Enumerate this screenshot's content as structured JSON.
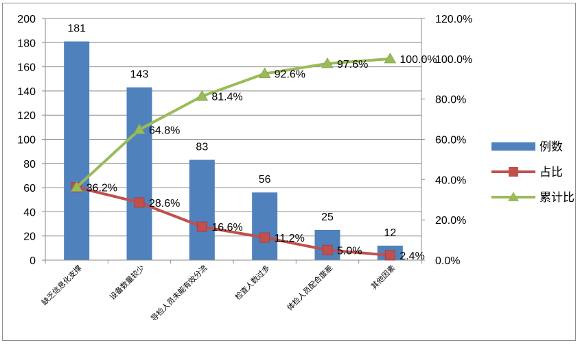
{
  "chart_data": {
    "type": "bar",
    "categories": [
      "缺乏信息化支撑",
      "设备数量较少",
      "导检人员未能有效分流",
      "检查人数过多",
      "体检人员配合度差",
      "其他因素"
    ],
    "series": [
      {
        "name": "例数",
        "type": "bar",
        "axis": "left",
        "values": [
          181,
          143,
          83,
          56,
          25,
          12
        ],
        "labels": [
          "181",
          "143",
          "83",
          "56",
          "25",
          "12"
        ],
        "color": "#4f81bd"
      },
      {
        "name": "占比",
        "type": "line",
        "axis": "right",
        "values": [
          36.2,
          28.6,
          16.6,
          11.2,
          5.0,
          2.4
        ],
        "labels": [
          "36.2%",
          "28.6%",
          "16.6%",
          "11.2%",
          "5.0%",
          "2.4%"
        ],
        "color": "#c0504d",
        "marker": "square"
      },
      {
        "name": "累计比",
        "type": "line",
        "axis": "right",
        "values": [
          36.2,
          64.8,
          81.4,
          92.6,
          97.6,
          100.0
        ],
        "labels": [
          "",
          "64.8%",
          "81.4%",
          "92.6%",
          "97.6%",
          "100.0%"
        ],
        "color": "#9bbb59",
        "marker": "triangle"
      }
    ],
    "y_left": {
      "min": 0,
      "max": 200,
      "ticks": [
        "0",
        "20",
        "40",
        "60",
        "80",
        "100",
        "120",
        "140",
        "160",
        "180",
        "200"
      ]
    },
    "y_right": {
      "min": 0,
      "max": 120,
      "ticks": [
        "0.0%",
        "20.0%",
        "40.0%",
        "60.0%",
        "80.0%",
        "100.0%",
        "120.0%"
      ]
    },
    "grid": true,
    "legend_position": "right"
  }
}
